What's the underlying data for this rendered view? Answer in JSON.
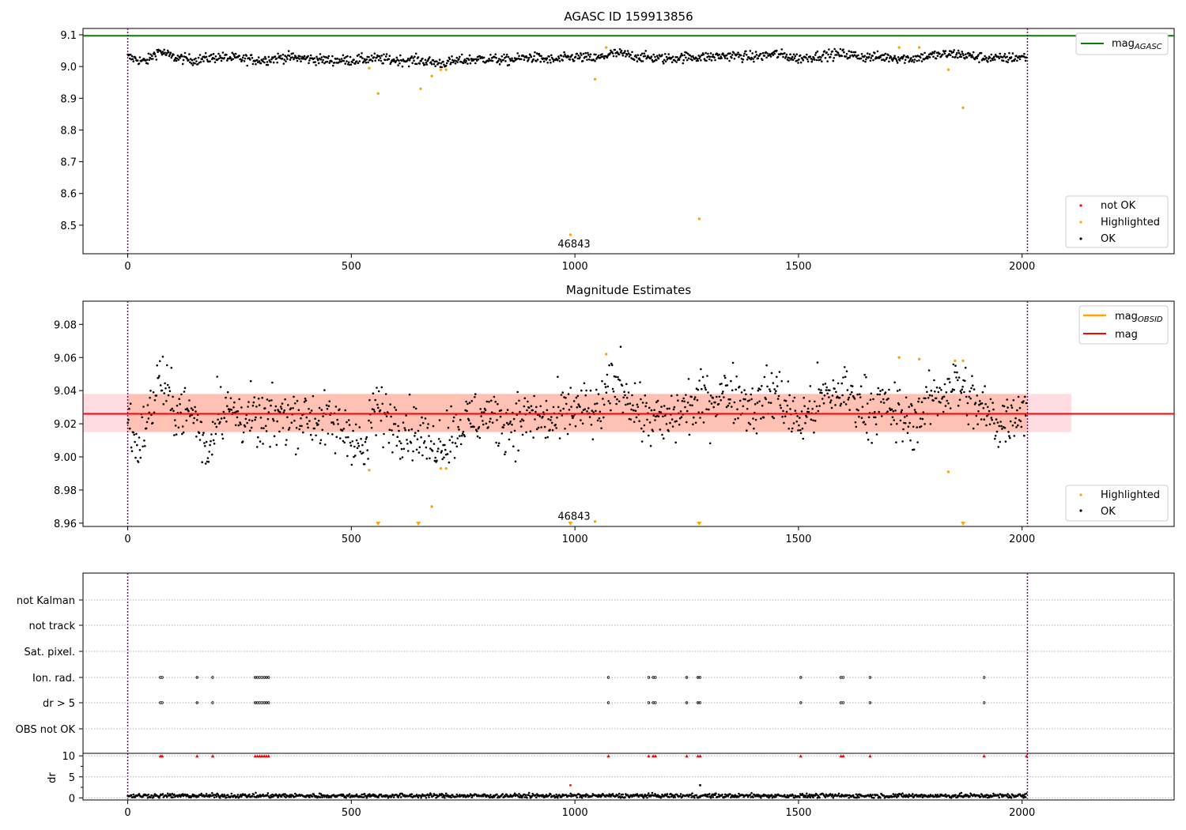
{
  "chart_data": [
    {
      "type": "scatter",
      "title": "AGASC ID 159913856",
      "xlim": [
        -100,
        2340
      ],
      "ylim": [
        8.41,
        9.12
      ],
      "xticks": [
        "0",
        "500",
        "1000",
        "1500",
        "2000"
      ],
      "xtick_values": [
        0,
        500,
        1000,
        1500,
        2000
      ],
      "yticks": [
        "8.5",
        "8.6",
        "8.7",
        "8.8",
        "8.9",
        "9.0",
        "9.1"
      ],
      "ytick_values": [
        8.5,
        8.6,
        8.7,
        8.8,
        8.9,
        9.0,
        9.1
      ],
      "vlines": [
        0,
        2012
      ],
      "annotation": {
        "text": "46843",
        "x": 998,
        "y": 8.44
      },
      "mag_agasc": 9.097,
      "legend_upper": {
        "position": "upper right",
        "entries": [
          {
            "label_main": "mag",
            "label_sub": "AGASC",
            "color": "#008000"
          }
        ]
      },
      "legend_lower": {
        "position": "lower right",
        "entries": [
          {
            "label": "not OK",
            "color": "#ff0000"
          },
          {
            "label": "Highlighted",
            "color": "#ffa500"
          },
          {
            "label": "OK",
            "color": "#000000"
          }
        ]
      },
      "series": [
        {
          "name": "OK",
          "color": "#000000",
          "points": [
            [
              0,
              9.03
            ],
            [
              40,
              9.015
            ],
            [
              70,
              9.05
            ],
            [
              100,
              9.03
            ],
            [
              150,
              9.02
            ],
            [
              200,
              9.03
            ],
            [
              250,
              9.025
            ],
            [
              300,
              9.02
            ],
            [
              350,
              9.03
            ],
            [
              400,
              9.025
            ],
            [
              450,
              9.02
            ],
            [
              500,
              9.02
            ],
            [
              550,
              9.025
            ],
            [
              600,
              9.02
            ],
            [
              650,
              9.02
            ],
            [
              700,
              9.01
            ],
            [
              750,
              9.02
            ],
            [
              800,
              9.025
            ],
            [
              850,
              9.02
            ],
            [
              900,
              9.03
            ],
            [
              950,
              9.02
            ],
            [
              1000,
              9.03
            ],
            [
              1050,
              9.025
            ],
            [
              1080,
              9.04
            ],
            [
              1100,
              9.04
            ],
            [
              1150,
              9.03
            ],
            [
              1200,
              9.025
            ],
            [
              1250,
              9.03
            ],
            [
              1300,
              9.03
            ],
            [
              1350,
              9.035
            ],
            [
              1400,
              9.03
            ],
            [
              1450,
              9.04
            ],
            [
              1500,
              9.025
            ],
            [
              1550,
              9.035
            ],
            [
              1600,
              9.04
            ],
            [
              1650,
              9.03
            ],
            [
              1700,
              9.03
            ],
            [
              1750,
              9.025
            ],
            [
              1800,
              9.035
            ],
            [
              1850,
              9.04
            ],
            [
              1900,
              9.03
            ],
            [
              1950,
              9.025
            ],
            [
              2000,
              9.03
            ],
            [
              2010,
              9.03
            ]
          ]
        },
        {
          "name": "Highlighted",
          "color": "#ffa500",
          "points": [
            [
              540,
              8.995
            ],
            [
              560,
              8.915
            ],
            [
              655,
              8.93
            ],
            [
              680,
              8.97
            ],
            [
              700,
              8.99
            ],
            [
              712,
              8.99
            ],
            [
              990,
              8.47
            ],
            [
              1045,
              8.96
            ],
            [
              1070,
              9.06
            ],
            [
              1278,
              8.52
            ],
            [
              1725,
              9.06
            ],
            [
              1770,
              9.06
            ],
            [
              1835,
              8.99
            ],
            [
              1868,
              8.87
            ]
          ]
        }
      ]
    },
    {
      "type": "scatter",
      "title": "Magnitude Estimates",
      "xlim": [
        -100,
        2340
      ],
      "ylim": [
        8.958,
        9.094
      ],
      "xticks": [
        "0",
        "500",
        "1000",
        "1500",
        "2000"
      ],
      "xtick_values": [
        0,
        500,
        1000,
        1500,
        2000
      ],
      "yticks": [
        "8.96",
        "8.98",
        "9.00",
        "9.02",
        "9.04",
        "9.06",
        "9.08"
      ],
      "ytick_values": [
        8.96,
        8.98,
        9.0,
        9.02,
        9.04,
        9.06,
        9.08
      ],
      "vlines": [
        0,
        2012
      ],
      "annotation": {
        "text": "46843",
        "x": 998,
        "y": 8.964
      },
      "mag": 9.026,
      "mag_band": [
        9.015,
        9.038
      ],
      "mag_band_xrange": [
        -100,
        2110
      ],
      "mag_obsid_band_xrange": [
        0,
        2010
      ],
      "legend_upper": {
        "position": "upper right",
        "entries": [
          {
            "label_main": "mag",
            "label_sub": "OBSID",
            "color": "#ffa500"
          },
          {
            "label_main": "mag",
            "label_sub": "",
            "color": "#ff0000"
          }
        ]
      },
      "legend_lower": {
        "position": "lower right",
        "entries": [
          {
            "label": "Highlighted",
            "color": "#ffa500"
          },
          {
            "label": "OK",
            "color": "#000000"
          }
        ]
      },
      "series": [
        {
          "name": "OK",
          "color": "#000000",
          "points": [
            [
              0,
              9.025
            ],
            [
              20,
              9.005
            ],
            [
              55,
              9.03
            ],
            [
              70,
              9.05
            ],
            [
              100,
              9.03
            ],
            [
              150,
              9.025
            ],
            [
              180,
              9.0
            ],
            [
              200,
              9.03
            ],
            [
              250,
              9.025
            ],
            [
              300,
              9.02
            ],
            [
              350,
              9.025
            ],
            [
              400,
              9.025
            ],
            [
              450,
              9.02
            ],
            [
              500,
              9.015
            ],
            [
              530,
              9.0
            ],
            [
              550,
              9.03
            ],
            [
              600,
              9.02
            ],
            [
              650,
              9.015
            ],
            [
              680,
              9.005
            ],
            [
              700,
              9.01
            ],
            [
              750,
              9.02
            ],
            [
              800,
              9.025
            ],
            [
              850,
              9.02
            ],
            [
              900,
              9.025
            ],
            [
              950,
              9.02
            ],
            [
              1000,
              9.03
            ],
            [
              1050,
              9.025
            ],
            [
              1080,
              9.04
            ],
            [
              1100,
              9.045
            ],
            [
              1150,
              9.025
            ],
            [
              1200,
              9.02
            ],
            [
              1250,
              9.03
            ],
            [
              1300,
              9.035
            ],
            [
              1350,
              9.04
            ],
            [
              1400,
              9.03
            ],
            [
              1450,
              9.04
            ],
            [
              1500,
              9.02
            ],
            [
              1550,
              9.035
            ],
            [
              1600,
              9.04
            ],
            [
              1650,
              9.03
            ],
            [
              1700,
              9.03
            ],
            [
              1750,
              9.02
            ],
            [
              1800,
              9.035
            ],
            [
              1850,
              9.045
            ],
            [
              1900,
              9.03
            ],
            [
              1950,
              9.02
            ],
            [
              2000,
              9.03
            ],
            [
              2010,
              9.03
            ]
          ]
        },
        {
          "name": "Highlighted",
          "color": "#ffa500",
          "points": [
            [
              540,
              8.992
            ],
            [
              680,
              8.97
            ],
            [
              700,
              8.993
            ],
            [
              712,
              8.993
            ],
            [
              1045,
              8.961
            ],
            [
              1070,
              9.062
            ],
            [
              1725,
              9.06
            ],
            [
              1770,
              9.059
            ],
            [
              1835,
              8.991
            ],
            [
              1850,
              9.058
            ],
            [
              1868,
              9.058
            ]
          ]
        }
      ],
      "below_range_markers": [
        560,
        650,
        990,
        1278,
        1868
      ]
    },
    {
      "type": "scatter",
      "title": "",
      "xlim": [
        -100,
        2340
      ],
      "xticks": [
        "0",
        "500",
        "1000",
        "1500",
        "2000"
      ],
      "xtick_values": [
        0,
        500,
        1000,
        1500,
        2000
      ],
      "vlines": [
        0,
        2012
      ],
      "category_rows": [
        "not Kalman",
        "not track",
        "Sat. pixel.",
        "Ion. rad.",
        "dr > 5",
        "OBS not OK"
      ],
      "flag_events": {
        "Ion. rad.": [
          73,
          77,
          155,
          190,
          285,
          290,
          295,
          300,
          305,
          310,
          315,
          1075,
          1165,
          1175,
          1180,
          1250,
          1275,
          1280,
          1505,
          1595,
          1600,
          1660,
          1915
        ],
        "dr > 5": [
          73,
          77,
          155,
          190,
          285,
          290,
          295,
          300,
          305,
          310,
          315,
          1075,
          1165,
          1175,
          1180,
          1250,
          1275,
          1280,
          1505,
          1595,
          1600,
          1660,
          1915
        ]
      },
      "dr": {
        "ylabel": "dr",
        "yticks": [
          "0",
          "5",
          "10"
        ],
        "ytick_values": [
          0,
          5,
          10
        ],
        "ylim": [
          -0.5,
          10.6
        ],
        "threshold": 5,
        "clipped_at": 10,
        "clipped_events": [
          73,
          77,
          155,
          190,
          285,
          290,
          295,
          300,
          305,
          310,
          315,
          1075,
          1165,
          1175,
          1180,
          1250,
          1275,
          1280,
          1505,
          1595,
          1600,
          1660,
          1915,
          2010
        ],
        "baseline_level": 0.5,
        "outliers": [
          [
            990,
            3.0
          ],
          [
            1280,
            3.0
          ]
        ]
      }
    }
  ]
}
